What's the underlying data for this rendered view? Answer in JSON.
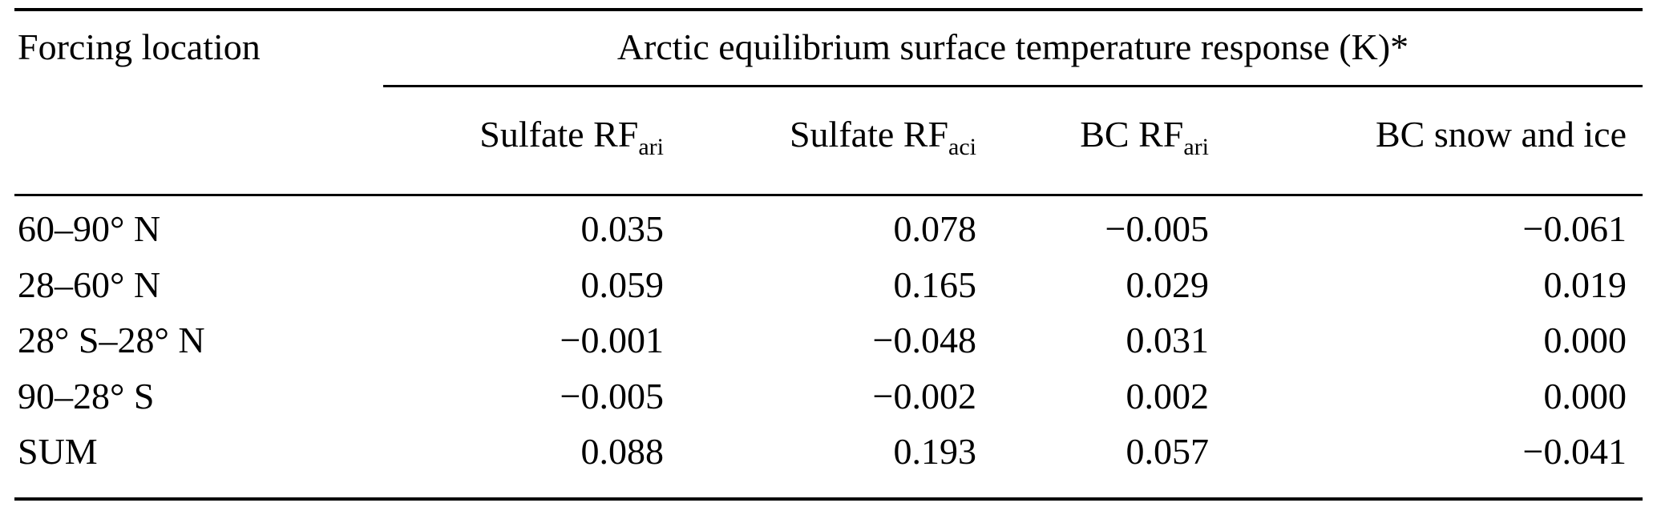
{
  "table": {
    "col1_header": "Forcing location",
    "span_header": "Arctic equilibrium surface temperature response (K)*",
    "columns": [
      {
        "main": "Sulfate RF",
        "sub": "ari"
      },
      {
        "main": "Sulfate RF",
        "sub": "aci"
      },
      {
        "main": "BC RF",
        "sub": "ari"
      },
      {
        "main": "BC snow and ice",
        "sub": ""
      }
    ],
    "rows": [
      {
        "location": "60–90° N",
        "values": [
          "0.035",
          "0.078",
          "−0.005",
          "−0.061"
        ]
      },
      {
        "location": "28–60° N",
        "values": [
          "0.059",
          "0.165",
          "0.029",
          "0.019"
        ]
      },
      {
        "location": "28° S–28° N",
        "values": [
          "−0.001",
          "−0.048",
          "0.031",
          "0.000"
        ]
      },
      {
        "location": "90–28° S",
        "values": [
          "−0.005",
          "−0.002",
          "0.002",
          "0.000"
        ]
      },
      {
        "location": "SUM",
        "values": [
          "0.088",
          "0.193",
          "0.057",
          "−0.041"
        ]
      }
    ]
  }
}
